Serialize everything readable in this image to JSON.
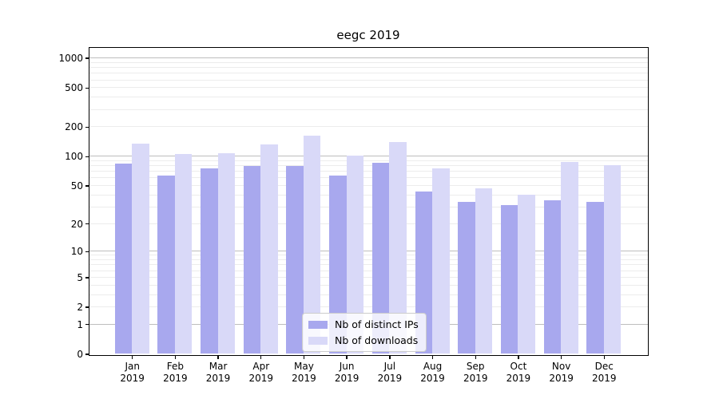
{
  "title": "eegc 2019",
  "chart_data": {
    "type": "bar",
    "title": "eegc 2019",
    "categories": [
      "Jan 2019",
      "Feb 2019",
      "Mar 2019",
      "Apr 2019",
      "May 2019",
      "Jun 2019",
      "Jul 2019",
      "Aug 2019",
      "Sep 2019",
      "Oct 2019",
      "Nov 2019",
      "Dec 2019"
    ],
    "series": [
      {
        "name": "Nb of distinct IPs",
        "color": "#a8a8ee",
        "values": [
          84,
          63,
          75,
          80,
          80,
          63,
          85,
          43,
          34,
          31,
          35,
          34
        ]
      },
      {
        "name": "Nb of downloads",
        "color": "#d9d9f8",
        "values": [
          135,
          105,
          108,
          132,
          162,
          102,
          139,
          75,
          47,
          40,
          88,
          81
        ]
      }
    ],
    "xlabel": "",
    "ylabel": "",
    "yscale": "log(value+1)",
    "yticks": [
      0,
      1,
      2,
      5,
      10,
      20,
      50,
      100,
      200,
      500,
      1000
    ],
    "ytick_labels": [
      "0",
      "1",
      "2",
      "5",
      "10",
      "20",
      "50",
      "100",
      "200",
      "500",
      "1000"
    ],
    "major_grid_at": [
      1,
      10,
      100,
      1000
    ],
    "ylim": [
      0,
      1280
    ],
    "grid": true,
    "legend_position": "inside lower-center",
    "grid_major_color": "#bdbdbd",
    "grid_minor_color": "#ececec",
    "spine_color": "#000000",
    "background_color": "#ffffff"
  }
}
